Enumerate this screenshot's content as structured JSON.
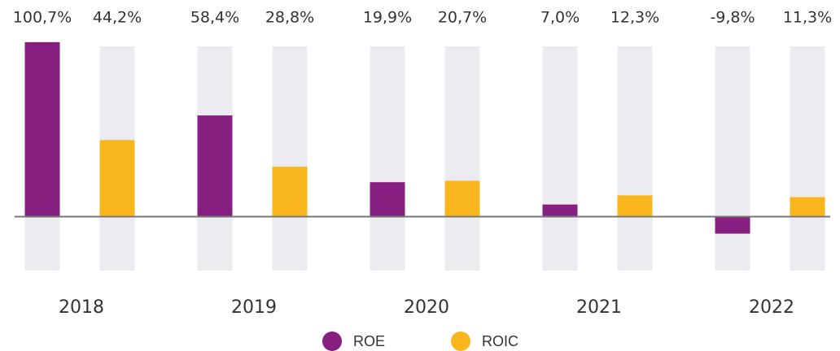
{
  "chart_data": {
    "type": "bar",
    "categories": [
      "2018",
      "2019",
      "2020",
      "2021",
      "2022"
    ],
    "series": [
      {
        "name": "ROE",
        "color": "#861f80",
        "values": [
          100.7,
          58.4,
          19.9,
          7.0,
          -9.8
        ],
        "value_labels": [
          "100,7%",
          "58,4%",
          "19,9%",
          "7,0%",
          "-9,8%"
        ]
      },
      {
        "name": "ROIC",
        "color": "#f9b51c",
        "values": [
          44.2,
          28.8,
          20.7,
          12.3,
          11.3
        ],
        "value_labels": [
          "44,2%",
          "28,8%",
          "20,7%",
          "12,3%",
          "11,3%"
        ]
      }
    ],
    "ylim": [
      -40,
      110
    ]
  }
}
